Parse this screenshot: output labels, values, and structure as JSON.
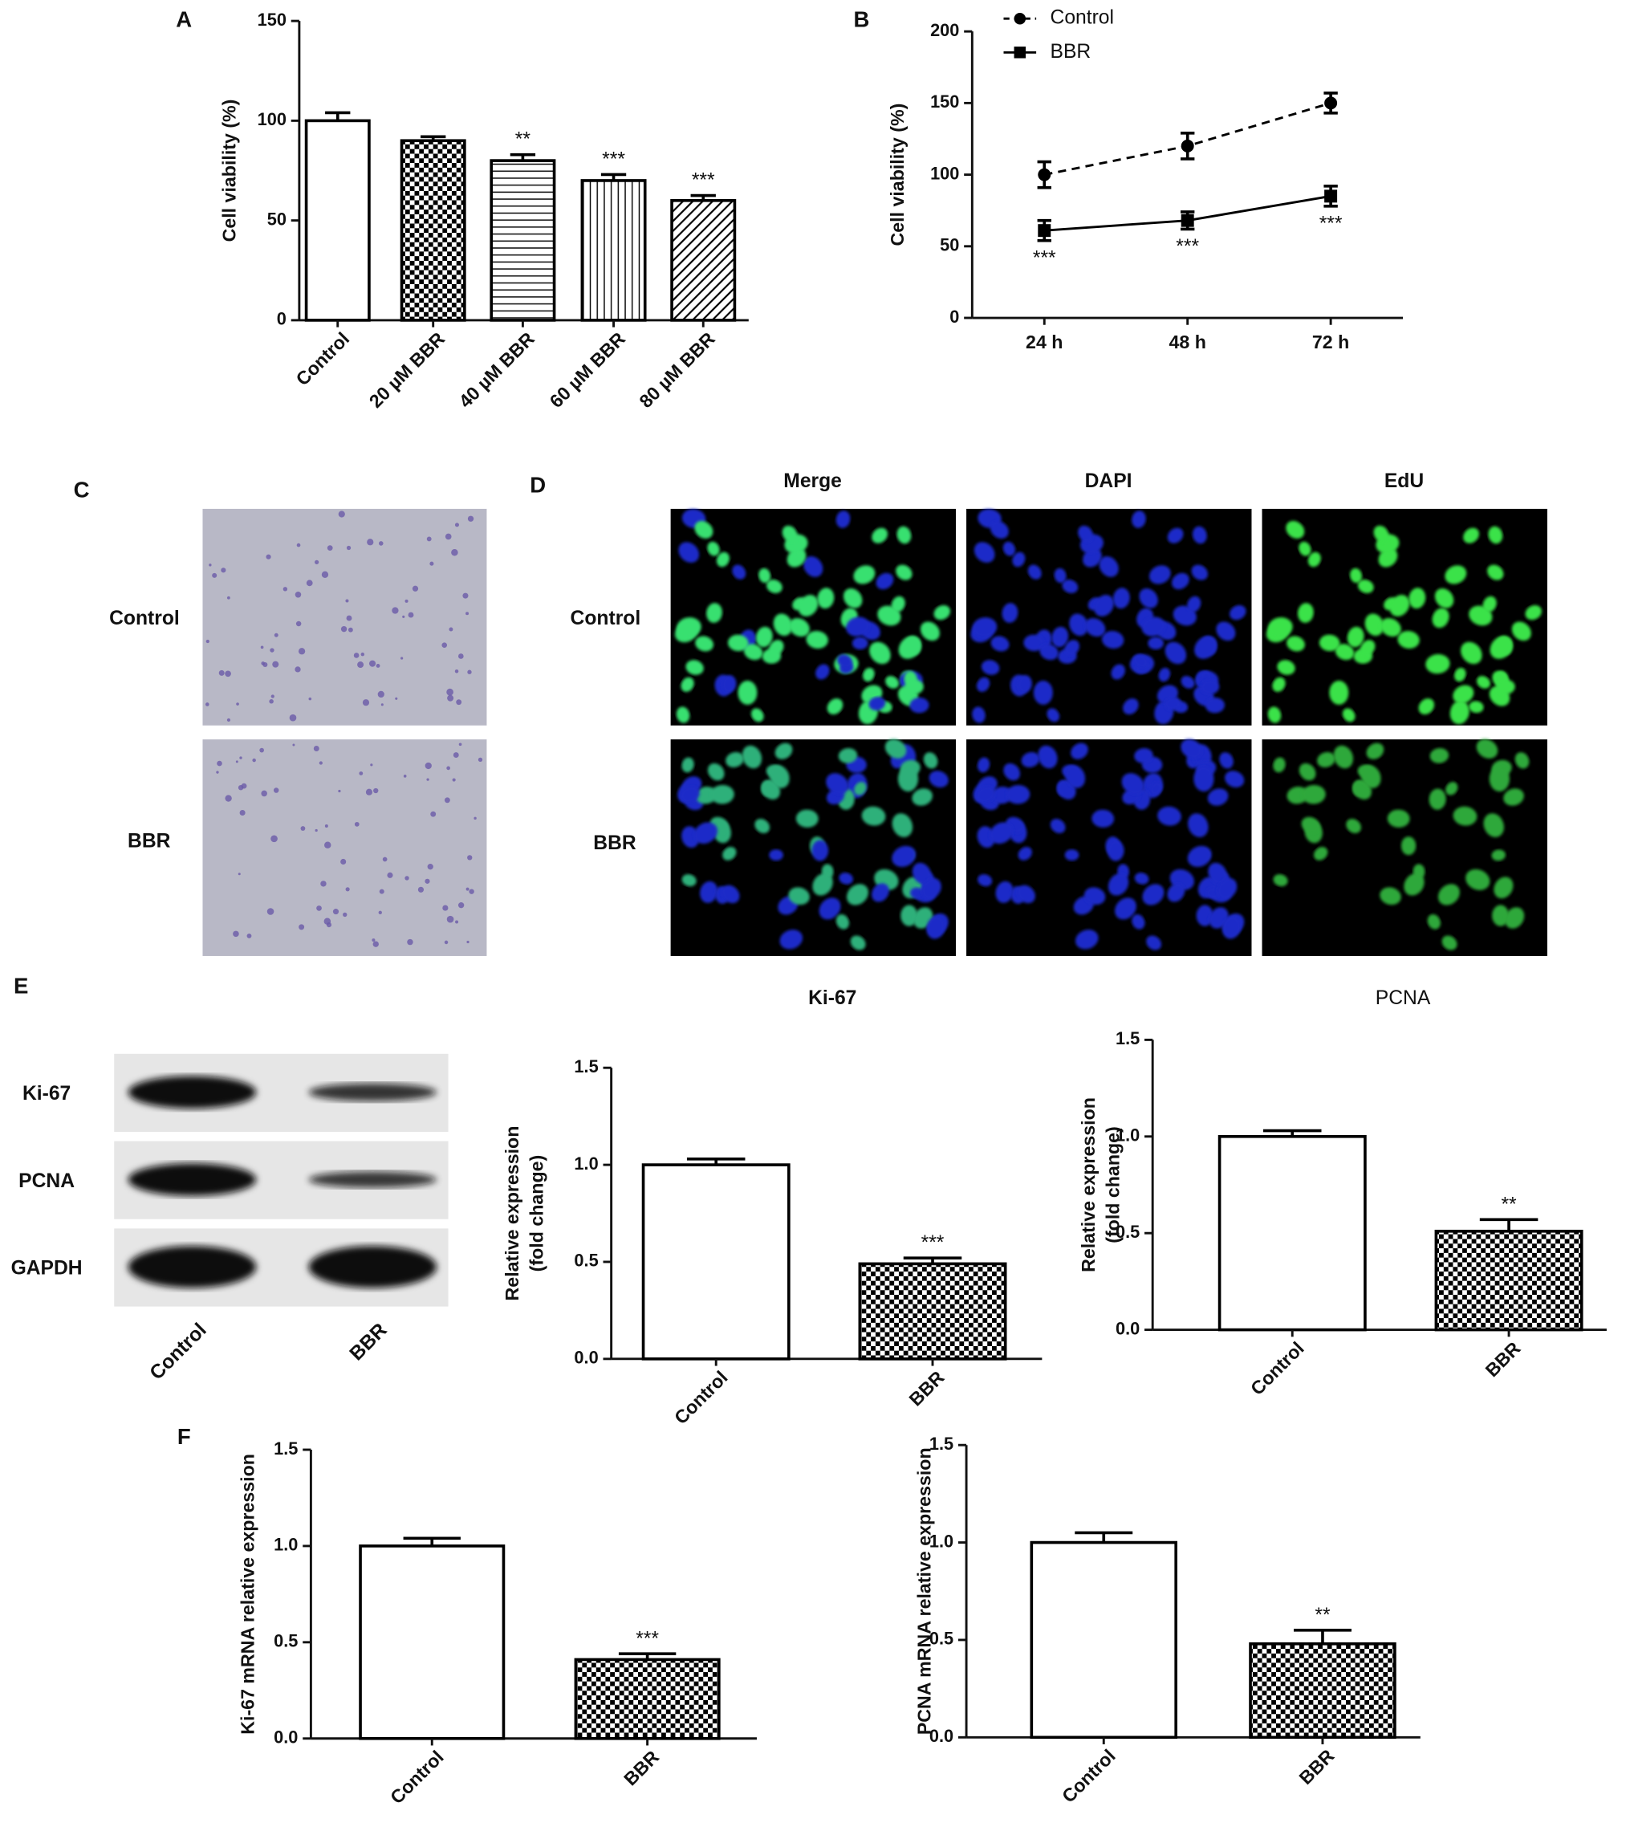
{
  "panel_labels": [
    "A",
    "B",
    "C",
    "D",
    "E",
    "F"
  ],
  "colony": {
    "rows": [
      "Control",
      "BBR"
    ]
  },
  "edu": {
    "columns": [
      "Merge",
      "DAPI",
      "EdU"
    ],
    "rows": [
      "Control",
      "BBR"
    ]
  },
  "blot": {
    "rows": [
      "Ki-67",
      "PCNA",
      "GAPDH"
    ],
    "lanes": [
      "Control",
      "BBR"
    ]
  },
  "chart_data": [
    {
      "type": "bar",
      "ylabel": [
        "Cell viability (%)"
      ],
      "categories": [
        "Control",
        "20 µM BBR",
        "40 µM BBR",
        "60 µM BBR",
        "80 µM BBR"
      ],
      "values": [
        100,
        90,
        80,
        70,
        60
      ],
      "errors": [
        4,
        2,
        3,
        3,
        2.5
      ],
      "annotations": [
        null,
        null,
        "**",
        "***",
        "***"
      ],
      "patterns": [
        "none",
        "checker",
        "horizontal",
        "vertical",
        "diagonal"
      ],
      "color": "#000000",
      "ylim": [
        0,
        150
      ],
      "yticks": [
        0,
        50,
        100,
        150
      ]
    },
    {
      "type": "line",
      "ylabel": [
        "Cell viability (%)"
      ],
      "categories": [
        "24 h",
        "48 h",
        "72 h"
      ],
      "series": [
        {
          "name": "Control",
          "color": "#000000",
          "marker": "circle",
          "dash": true,
          "values": [
            100,
            120,
            150
          ],
          "errors": [
            9,
            9,
            7
          ]
        },
        {
          "name": "BBR",
          "color": "#000000",
          "marker": "square",
          "dash": false,
          "values": [
            61,
            68,
            85
          ],
          "errors": [
            7,
            6,
            7
          ],
          "annotations": [
            "***",
            "***",
            "***"
          ]
        }
      ],
      "ylim": [
        0,
        200
      ],
      "yticks": [
        0,
        50,
        100,
        150,
        200
      ],
      "legend": "top-left"
    },
    {
      "type": "bar",
      "title": "Ki-67",
      "ylabel": [
        "Relative expression",
        "(fold change)"
      ],
      "categories": [
        "Control",
        "BBR"
      ],
      "values": [
        1.0,
        0.49
      ],
      "errors": [
        0.03,
        0.03
      ],
      "annotations": [
        null,
        "***"
      ],
      "patterns": [
        "none",
        "checker"
      ],
      "color": "#000000",
      "ylim": [
        0,
        1.5
      ],
      "yticks": [
        {
          "value": 0,
          "label": "0.0"
        },
        0.5,
        {
          "value": 1,
          "label": "1.0"
        },
        1.5
      ]
    },
    {
      "type": "bar",
      "title": "PCNA",
      "ylabel": [
        "Relative expression",
        "(fold change)"
      ],
      "categories": [
        "Control",
        "BBR"
      ],
      "values": [
        1.0,
        0.51
      ],
      "errors": [
        0.03,
        0.06
      ],
      "annotations": [
        null,
        "**"
      ],
      "patterns": [
        "none",
        "checker"
      ],
      "color": "#000000",
      "ylim": [
        0,
        1.5
      ],
      "yticks": [
        {
          "value": 0,
          "label": "0.0"
        },
        0.5,
        {
          "value": 1,
          "label": "1.0"
        },
        1.5
      ]
    },
    {
      "type": "bar",
      "ylabel": [
        "Ki-67 mRNA relative expression"
      ],
      "categories": [
        "Control",
        "BBR"
      ],
      "values": [
        1.0,
        0.41
      ],
      "errors": [
        0.04,
        0.03
      ],
      "annotations": [
        null,
        "***"
      ],
      "patterns": [
        "none",
        "checker"
      ],
      "color": "#000000",
      "ylim": [
        0,
        1.5
      ],
      "yticks": [
        {
          "value": 0,
          "label": "0.0"
        },
        0.5,
        {
          "value": 1,
          "label": "1.0"
        },
        1.5
      ]
    },
    {
      "type": "bar",
      "ylabel": [
        "PCNA mRNA relative expression"
      ],
      "categories": [
        "Control",
        "BBR"
      ],
      "values": [
        1.0,
        0.48
      ],
      "errors": [
        0.05,
        0.07
      ],
      "annotations": [
        null,
        "**"
      ],
      "patterns": [
        "none",
        "checker"
      ],
      "color": "#000000",
      "ylim": [
        0,
        1.5
      ],
      "yticks": [
        {
          "value": 0,
          "label": "0.0"
        },
        0.5,
        {
          "value": 1,
          "label": "1.0"
        },
        1.5
      ]
    }
  ]
}
